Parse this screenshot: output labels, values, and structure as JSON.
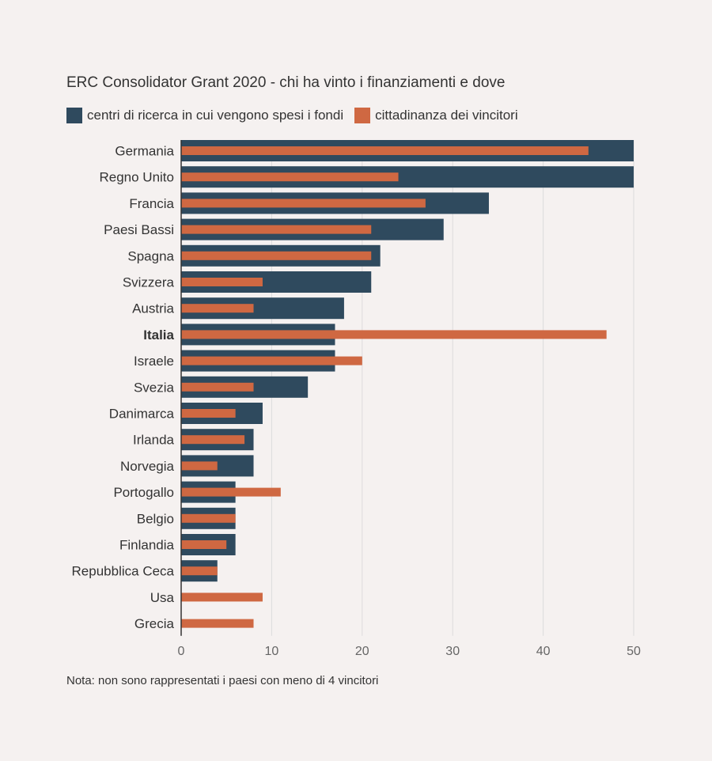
{
  "title": "ERC Consolidator Grant 2020 - chi ha vinto i finanziamenti e dove",
  "legend": {
    "series0": "centri di ricerca in cui vengono spesi i fondi",
    "series1": "cittadinanza dei vincitori"
  },
  "note": "Nota: non sono rappresentati i paesi con meno di 4 vincitori",
  "colors": {
    "series0": "#2f4a5e",
    "series1": "#cf6842",
    "background": "#f5f1f0",
    "grid": "#dcdcdc"
  },
  "chart_data": {
    "type": "bar",
    "orientation": "horizontal",
    "categories": [
      "Germania",
      "Regno Unito",
      "Francia",
      "Paesi Bassi",
      "Spagna",
      "Svizzera",
      "Austria",
      "Italia",
      "Israele",
      "Svezia",
      "Danimarca",
      "Irlanda",
      "Norvegia",
      "Portogallo",
      "Belgio",
      "Finlandia",
      "Repubblica Ceca",
      "Usa",
      "Grecia"
    ],
    "highlight_category": "Italia",
    "series": [
      {
        "name": "centri di ricerca in cui vengono spesi i fondi",
        "values": [
          50,
          50,
          34,
          29,
          22,
          21,
          18,
          17,
          17,
          14,
          9,
          8,
          8,
          6,
          6,
          6,
          4,
          0,
          0
        ]
      },
      {
        "name": "cittadinanza dei vincitori",
        "values": [
          45,
          24,
          27,
          21,
          21,
          9,
          8,
          47,
          20,
          8,
          6,
          7,
          4,
          11,
          6,
          5,
          4,
          9,
          8
        ]
      }
    ],
    "xlim": [
      0,
      50
    ],
    "xticks": [
      0,
      10,
      20,
      30,
      40,
      50
    ],
    "grid": true
  }
}
